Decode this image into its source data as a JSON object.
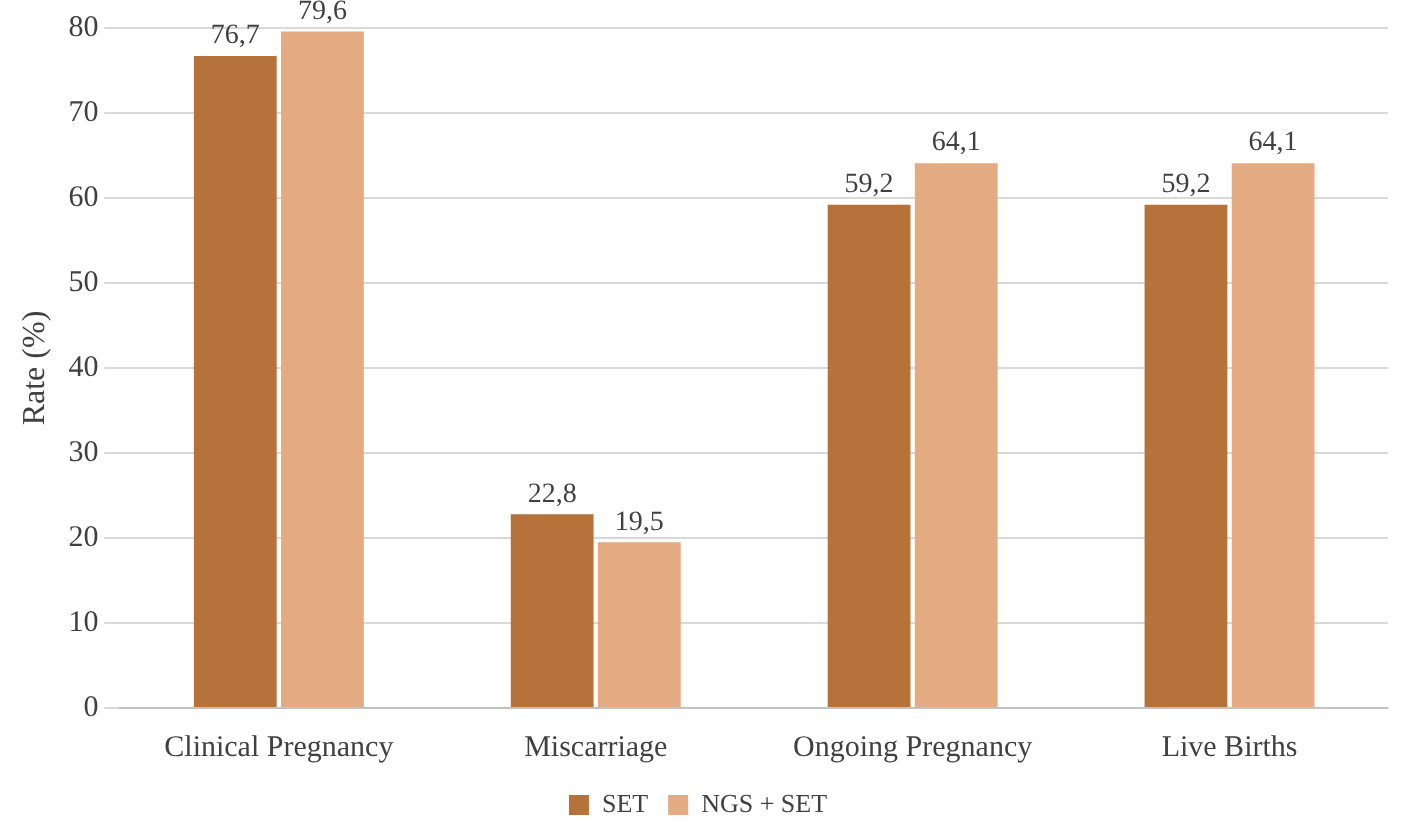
{
  "chart_data": {
    "type": "bar",
    "ylabel": "Rate (%)",
    "categories": [
      "Clinical Pregnancy",
      "Miscarriage",
      "Ongoing Pregnancy",
      "Live Births"
    ],
    "series": [
      {
        "name": "SET",
        "color": "#b5723a",
        "values": [
          76.7,
          22.8,
          59.2,
          59.2
        ],
        "value_labels": [
          "76,7",
          "22,8",
          "59,2",
          "59,2"
        ]
      },
      {
        "name": "NGS + SET",
        "color": "#e4aa82",
        "values": [
          79.6,
          19.5,
          64.1,
          64.1
        ],
        "value_labels": [
          "79,6",
          "19,5",
          "64,1",
          "64,1"
        ]
      }
    ],
    "ylim": [
      0,
      80
    ],
    "yticks": [
      0,
      10,
      20,
      30,
      40,
      50,
      60,
      70,
      80
    ],
    "grid": "y",
    "legend": "bottom"
  }
}
